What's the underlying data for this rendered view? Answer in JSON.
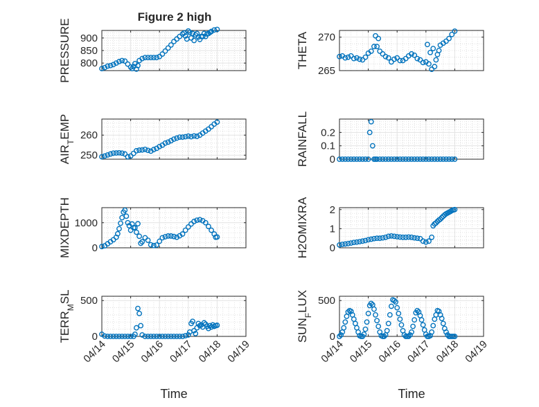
{
  "figure_title": "Figure 2 high",
  "xlabel": "Time",
  "x_ticks": [
    "04/14",
    "04/15",
    "04/16",
    "04/17",
    "04/18",
    "04/19"
  ],
  "colors": {
    "marker": "#0072BD",
    "axis": "#262626",
    "grid": "#d9d9d9"
  },
  "chart_data": [
    {
      "type": "scatter",
      "ylabel": "PRESSURE",
      "ylabel_sub": null,
      "yticks": [
        800,
        850,
        900
      ],
      "ylim": [
        770,
        930
      ],
      "xlim": [
        0,
        5
      ],
      "x_tick_labels_shown": false,
      "x": [
        0.0,
        0.1,
        0.2,
        0.3,
        0.4,
        0.5,
        0.6,
        0.7,
        0.8,
        0.9,
        1.0,
        1.05,
        1.1,
        1.15,
        1.2,
        1.25,
        1.3,
        1.4,
        1.5,
        1.6,
        1.7,
        1.8,
        1.9,
        2.0,
        2.1,
        2.2,
        2.3,
        2.4,
        2.5,
        2.6,
        2.7,
        2.8,
        2.85,
        2.9,
        2.95,
        3.0,
        3.05,
        3.1,
        3.15,
        3.2,
        3.25,
        3.3,
        3.35,
        3.4,
        3.45,
        3.5,
        3.55,
        3.6,
        3.65,
        3.7,
        3.75,
        3.8,
        3.9,
        4.0
      ],
      "y": [
        778,
        782,
        788,
        790,
        794,
        800,
        806,
        810,
        808,
        796,
        784,
        778,
        786,
        798,
        776,
        790,
        810,
        818,
        822,
        822,
        822,
        822,
        822,
        826,
        836,
        848,
        860,
        872,
        886,
        896,
        906,
        916,
        920,
        908,
        896,
        928,
        922,
        900,
        918,
        890,
        912,
        918,
        904,
        894,
        906,
        906,
        918,
        906,
        916,
        918,
        922,
        926,
        932,
        934
      ]
    },
    {
      "type": "scatter",
      "ylabel": "THETA",
      "ylabel_sub": null,
      "yticks": [
        265,
        270
      ],
      "ylim": [
        265,
        271
      ],
      "xlim": [
        0,
        5
      ],
      "x_tick_labels_shown": false,
      "x": [
        0.0,
        0.1,
        0.2,
        0.3,
        0.4,
        0.5,
        0.6,
        0.7,
        0.8,
        0.9,
        1.0,
        1.1,
        1.2,
        1.25,
        1.3,
        1.35,
        1.4,
        1.5,
        1.6,
        1.7,
        1.8,
        1.9,
        2.0,
        2.1,
        2.2,
        2.3,
        2.4,
        2.5,
        2.6,
        2.7,
        2.8,
        2.9,
        3.0,
        3.05,
        3.1,
        3.15,
        3.2,
        3.25,
        3.3,
        3.35,
        3.4,
        3.45,
        3.5,
        3.6,
        3.7,
        3.8,
        3.9,
        4.0
      ],
      "y": [
        267.1,
        267.2,
        266.9,
        267.0,
        267.2,
        266.8,
        266.9,
        266.7,
        266.6,
        267.0,
        267.6,
        267.9,
        268.6,
        270.2,
        268.6,
        269.8,
        267.9,
        267.5,
        267.1,
        266.9,
        266.3,
        266.7,
        266.9,
        266.5,
        266.5,
        266.8,
        267.2,
        267.5,
        267.3,
        266.8,
        266.6,
        266.2,
        266.3,
        268.9,
        266.0,
        267.7,
        265.2,
        268.3,
        265.6,
        266.6,
        267.4,
        268.0,
        268.8,
        269.1,
        269.4,
        269.8,
        270.4,
        270.9
      ]
    },
    {
      "type": "scatter",
      "ylabel": "AIR",
      "ylabel_sub": "T",
      "ylabel_rest": "EMP",
      "yticks": [
        250,
        260
      ],
      "ylim": [
        248,
        268
      ],
      "xlim": [
        0,
        5
      ],
      "x_tick_labels_shown": false,
      "x": [
        0.0,
        0.1,
        0.2,
        0.3,
        0.4,
        0.5,
        0.6,
        0.7,
        0.8,
        0.9,
        1.0,
        1.1,
        1.2,
        1.3,
        1.4,
        1.5,
        1.6,
        1.7,
        1.8,
        1.9,
        2.0,
        2.1,
        2.2,
        2.3,
        2.4,
        2.5,
        2.6,
        2.7,
        2.8,
        2.9,
        3.0,
        3.1,
        3.2,
        3.3,
        3.4,
        3.5,
        3.6,
        3.7,
        3.8,
        3.9,
        4.0
      ],
      "y": [
        249.2,
        249.6,
        250.1,
        250.6,
        251.0,
        251.1,
        251.2,
        251.0,
        250.6,
        249.2,
        249.6,
        250.9,
        252.2,
        252.5,
        252.6,
        252.9,
        252.4,
        252.0,
        252.8,
        253.4,
        254.3,
        255.0,
        256.0,
        256.5,
        257.2,
        258.0,
        258.5,
        259.0,
        259.0,
        259.2,
        259.5,
        259.2,
        259.6,
        259.4,
        260.0,
        261.0,
        262.0,
        263.0,
        264.2,
        265.5,
        266.5
      ]
    },
    {
      "type": "scatter",
      "ylabel": "RAINFALL",
      "ylabel_sub": null,
      "yticks": [
        0,
        0.1,
        0.2
      ],
      "ylim": [
        0,
        0.3
      ],
      "xlim": [
        0,
        5
      ],
      "x_tick_labels_shown": false,
      "x": [
        0.0,
        0.1,
        0.2,
        0.3,
        0.4,
        0.5,
        0.6,
        0.7,
        0.8,
        0.9,
        1.0,
        1.05,
        1.1,
        1.15,
        1.2,
        1.25,
        1.3,
        1.4,
        1.5,
        1.6,
        1.7,
        1.8,
        1.9,
        2.0,
        2.1,
        2.2,
        2.3,
        2.4,
        2.5,
        2.6,
        2.7,
        2.8,
        2.9,
        3.0,
        3.1,
        3.2,
        3.3,
        3.4,
        3.5,
        3.6,
        3.7,
        3.8,
        3.9,
        4.0
      ],
      "y": [
        0,
        0,
        0,
        0,
        0,
        0,
        0,
        0,
        0,
        0,
        0,
        0.2,
        0.28,
        0.1,
        0,
        0,
        0,
        0,
        0,
        0,
        0,
        0,
        0,
        0,
        0,
        0,
        0,
        0,
        0,
        0,
        0,
        0,
        0,
        0,
        0,
        0,
        0,
        0,
        0,
        0,
        0,
        0,
        0,
        0
      ]
    },
    {
      "type": "scatter",
      "ylabel": "MIXDEPTH",
      "ylabel_sub": null,
      "yticks": [
        0,
        1000
      ],
      "ylim": [
        0,
        1600
      ],
      "xlim": [
        0,
        5
      ],
      "x_tick_labels_shown": false,
      "x": [
        0.0,
        0.1,
        0.2,
        0.3,
        0.4,
        0.5,
        0.55,
        0.6,
        0.65,
        0.7,
        0.75,
        0.8,
        0.85,
        0.9,
        0.95,
        1.0,
        1.05,
        1.1,
        1.15,
        1.2,
        1.25,
        1.3,
        1.35,
        1.4,
        1.5,
        1.6,
        1.7,
        1.8,
        1.9,
        2.0,
        2.1,
        2.2,
        2.3,
        2.4,
        2.5,
        2.6,
        2.7,
        2.8,
        2.9,
        3.0,
        3.1,
        3.2,
        3.3,
        3.4,
        3.5,
        3.6,
        3.7,
        3.8,
        3.9,
        3.95,
        4.0
      ],
      "y": [
        50,
        80,
        160,
        240,
        320,
        420,
        560,
        760,
        980,
        1200,
        1420,
        1500,
        1260,
        1000,
        880,
        700,
        950,
        800,
        800,
        620,
        960,
        460,
        180,
        240,
        400,
        300,
        120,
        90,
        110,
        260,
        400,
        440,
        470,
        470,
        450,
        420,
        480,
        550,
        700,
        830,
        950,
        1050,
        1100,
        1120,
        1080,
        1000,
        850,
        700,
        550,
        420,
        430
      ]
    },
    {
      "type": "scatter",
      "ylabel": "H2OMIXRA",
      "ylabel_sub": null,
      "yticks": [
        0,
        1,
        2
      ],
      "ylim": [
        0,
        2.1
      ],
      "xlim": [
        0,
        5
      ],
      "x_tick_labels_shown": false,
      "x": [
        0.0,
        0.1,
        0.2,
        0.3,
        0.4,
        0.5,
        0.6,
        0.7,
        0.8,
        0.9,
        1.0,
        1.1,
        1.2,
        1.3,
        1.4,
        1.5,
        1.6,
        1.7,
        1.8,
        1.9,
        2.0,
        2.1,
        2.2,
        2.3,
        2.4,
        2.5,
        2.6,
        2.7,
        2.8,
        2.9,
        3.0,
        3.1,
        3.2,
        3.25,
        3.3,
        3.35,
        3.4,
        3.45,
        3.5,
        3.55,
        3.6,
        3.65,
        3.7,
        3.75,
        3.8,
        3.85,
        3.9,
        3.95,
        4.0
      ],
      "y": [
        0.15,
        0.18,
        0.2,
        0.22,
        0.25,
        0.28,
        0.3,
        0.32,
        0.35,
        0.38,
        0.42,
        0.45,
        0.48,
        0.5,
        0.5,
        0.52,
        0.55,
        0.6,
        0.62,
        0.6,
        0.58,
        0.56,
        0.55,
        0.55,
        0.56,
        0.55,
        0.52,
        0.5,
        0.48,
        0.35,
        0.3,
        0.35,
        0.55,
        1.15,
        1.25,
        1.3,
        1.38,
        1.45,
        1.5,
        1.58,
        1.65,
        1.72,
        1.78,
        1.82,
        1.86,
        1.9,
        1.95,
        1.98,
        2.0
      ]
    },
    {
      "type": "scatter",
      "ylabel": "TERR",
      "ylabel_sub": "M",
      "ylabel_rest": "SL",
      "yticks": [
        0,
        500
      ],
      "ylim": [
        0,
        560
      ],
      "xlim": [
        0,
        5
      ],
      "x_tick_labels_shown": true,
      "x": [
        0.0,
        0.1,
        0.2,
        0.3,
        0.4,
        0.5,
        0.6,
        0.7,
        0.8,
        0.9,
        1.0,
        1.1,
        1.15,
        1.2,
        1.25,
        1.3,
        1.35,
        1.4,
        1.5,
        1.6,
        1.7,
        1.8,
        1.9,
        2.0,
        2.1,
        2.2,
        2.3,
        2.4,
        2.5,
        2.6,
        2.7,
        2.8,
        2.9,
        3.0,
        3.05,
        3.1,
        3.15,
        3.2,
        3.25,
        3.3,
        3.35,
        3.4,
        3.45,
        3.5,
        3.55,
        3.6,
        3.65,
        3.7,
        3.75,
        3.8,
        3.85,
        3.9,
        3.95,
        4.0
      ],
      "y": [
        30,
        5,
        0,
        0,
        0,
        0,
        0,
        0,
        0,
        0,
        0,
        0,
        30,
        120,
        390,
        320,
        150,
        20,
        0,
        0,
        0,
        0,
        0,
        0,
        0,
        0,
        0,
        0,
        0,
        0,
        0,
        0,
        10,
        20,
        60,
        180,
        210,
        80,
        40,
        120,
        180,
        150,
        160,
        130,
        190,
        170,
        140,
        110,
        150,
        130,
        160,
        140,
        150,
        155
      ]
    },
    {
      "type": "scatter",
      "ylabel": "SUN",
      "ylabel_sub": "F",
      "ylabel_rest": "LUX",
      "yticks": [
        0,
        500
      ],
      "ylim": [
        0,
        560
      ],
      "xlim": [
        0,
        5
      ],
      "x_tick_labels_shown": true,
      "x": [
        0.0,
        0.05,
        0.1,
        0.15,
        0.2,
        0.25,
        0.3,
        0.35,
        0.4,
        0.45,
        0.5,
        0.55,
        0.6,
        0.65,
        0.7,
        0.75,
        0.8,
        0.85,
        0.9,
        0.95,
        1.0,
        1.05,
        1.1,
        1.15,
        1.2,
        1.25,
        1.3,
        1.35,
        1.4,
        1.45,
        1.5,
        1.55,
        1.6,
        1.65,
        1.7,
        1.75,
        1.8,
        1.85,
        1.9,
        1.95,
        2.0,
        2.05,
        2.1,
        2.15,
        2.2,
        2.25,
        2.3,
        2.35,
        2.4,
        2.45,
        2.5,
        2.55,
        2.6,
        2.65,
        2.7,
        2.75,
        2.8,
        2.85,
        2.9,
        2.95,
        3.0,
        3.05,
        3.1,
        3.15,
        3.2,
        3.25,
        3.3,
        3.35,
        3.4,
        3.45,
        3.5,
        3.55,
        3.6,
        3.65,
        3.7,
        3.75,
        3.8,
        3.85,
        3.9,
        3.95,
        4.0
      ],
      "y": [
        0,
        20,
        60,
        120,
        200,
        280,
        340,
        360,
        350,
        300,
        240,
        180,
        120,
        60,
        10,
        0,
        0,
        30,
        100,
        200,
        320,
        430,
        460,
        440,
        380,
        300,
        220,
        140,
        60,
        10,
        0,
        0,
        20,
        80,
        180,
        300,
        420,
        510,
        500,
        480,
        400,
        320,
        240,
        160,
        80,
        20,
        0,
        0,
        0,
        20,
        60,
        140,
        230,
        330,
        360,
        340,
        290,
        230,
        160,
        90,
        30,
        0,
        0,
        10,
        60,
        150,
        240,
        300,
        360,
        350,
        300,
        250,
        180,
        110,
        60,
        20,
        0,
        0,
        0,
        0,
        0
      ]
    }
  ]
}
